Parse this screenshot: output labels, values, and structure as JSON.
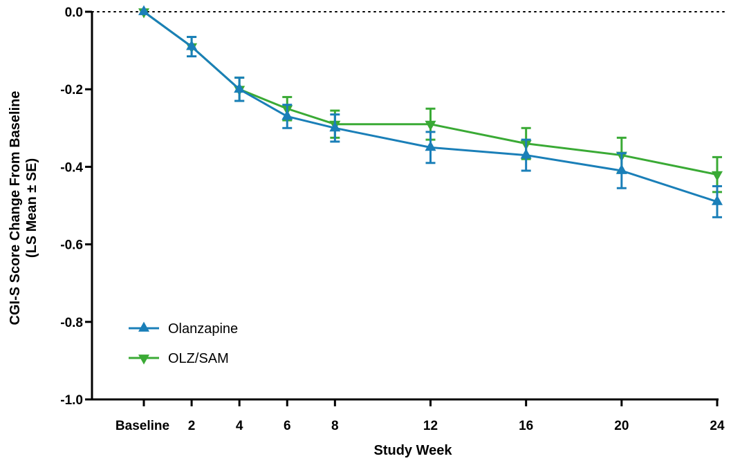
{
  "chart_data": {
    "type": "line",
    "xlabel": "Study Week",
    "ylabel_lines": [
      "CGI-S Score Change From Baseline",
      "(LS Mean ± SE)"
    ],
    "x": [
      0,
      2,
      4,
      6,
      8,
      12,
      16,
      20,
      24
    ],
    "x_tick_labels": [
      "Baseline",
      "2",
      "4",
      "6",
      "8",
      "12",
      "16",
      "20",
      "24"
    ],
    "xlim": [
      0,
      24
    ],
    "ylim": [
      -1.0,
      0.0
    ],
    "y_ticks": [
      0.0,
      -0.2,
      -0.4,
      -0.6,
      -0.8,
      -1.0
    ],
    "y_tick_labels": [
      "0.0",
      "-0.2",
      "-0.4",
      "-0.6",
      "-0.8",
      "-1.0"
    ],
    "reference_line": {
      "y": 0.0,
      "style": "dotted"
    },
    "grid": false,
    "legend_position": "bottom-left",
    "series": [
      {
        "name": "Olanzapine",
        "color": "#1a7fb8",
        "marker": "triangle-up",
        "values": [
          0.0,
          -0.09,
          -0.2,
          -0.27,
          -0.3,
          -0.35,
          -0.37,
          -0.41,
          -0.49
        ],
        "se": [
          0.0,
          0.025,
          0.03,
          0.03,
          0.035,
          0.04,
          0.04,
          0.045,
          0.04
        ]
      },
      {
        "name": "OLZ/SAM",
        "color": "#3aaa35",
        "marker": "triangle-down",
        "values": [
          0.0,
          -0.09,
          -0.2,
          -0.25,
          -0.29,
          -0.29,
          -0.34,
          -0.37,
          -0.42
        ],
        "se": [
          0.0,
          0.025,
          0.03,
          0.03,
          0.035,
          0.04,
          0.04,
          0.045,
          0.045
        ]
      }
    ]
  }
}
